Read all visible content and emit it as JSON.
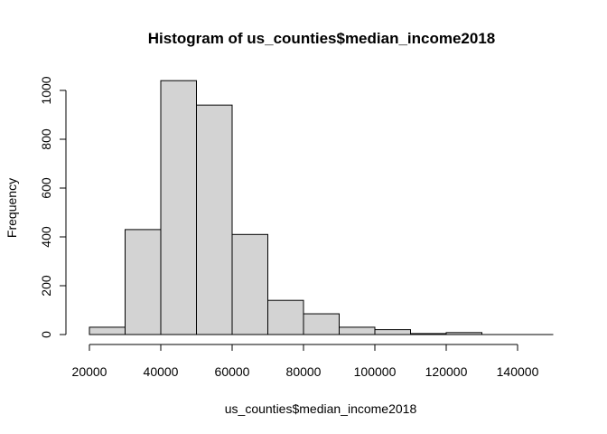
{
  "chart_data": {
    "type": "bar",
    "title": "Histogram of us_counties$median_income2018",
    "xlabel": "us_counties$median_income2018",
    "ylabel": "Frequency",
    "bins": [
      {
        "start": 20000,
        "end": 30000,
        "count": 30
      },
      {
        "start": 30000,
        "end": 40000,
        "count": 430
      },
      {
        "start": 40000,
        "end": 50000,
        "count": 1040
      },
      {
        "start": 50000,
        "end": 60000,
        "count": 940
      },
      {
        "start": 60000,
        "end": 70000,
        "count": 410
      },
      {
        "start": 70000,
        "end": 80000,
        "count": 140
      },
      {
        "start": 80000,
        "end": 90000,
        "count": 85
      },
      {
        "start": 90000,
        "end": 100000,
        "count": 30
      },
      {
        "start": 100000,
        "end": 110000,
        "count": 20
      },
      {
        "start": 110000,
        "end": 120000,
        "count": 4
      },
      {
        "start": 120000,
        "end": 130000,
        "count": 8
      },
      {
        "start": 130000,
        "end": 140000,
        "count": 0
      },
      {
        "start": 140000,
        "end": 150000,
        "count": 0
      }
    ],
    "x_ticks": [
      "20000",
      "40000",
      "60000",
      "80000",
      "100000",
      "120000",
      "140000"
    ],
    "y_ticks": [
      "0",
      "200",
      "400",
      "600",
      "800",
      "1000"
    ],
    "xlim": [
      20000,
      150000
    ],
    "ylim": [
      0,
      1000
    ],
    "grid": false,
    "legend": "none",
    "bar_fill": "#d3d3d3",
    "bar_stroke": "#000000"
  }
}
